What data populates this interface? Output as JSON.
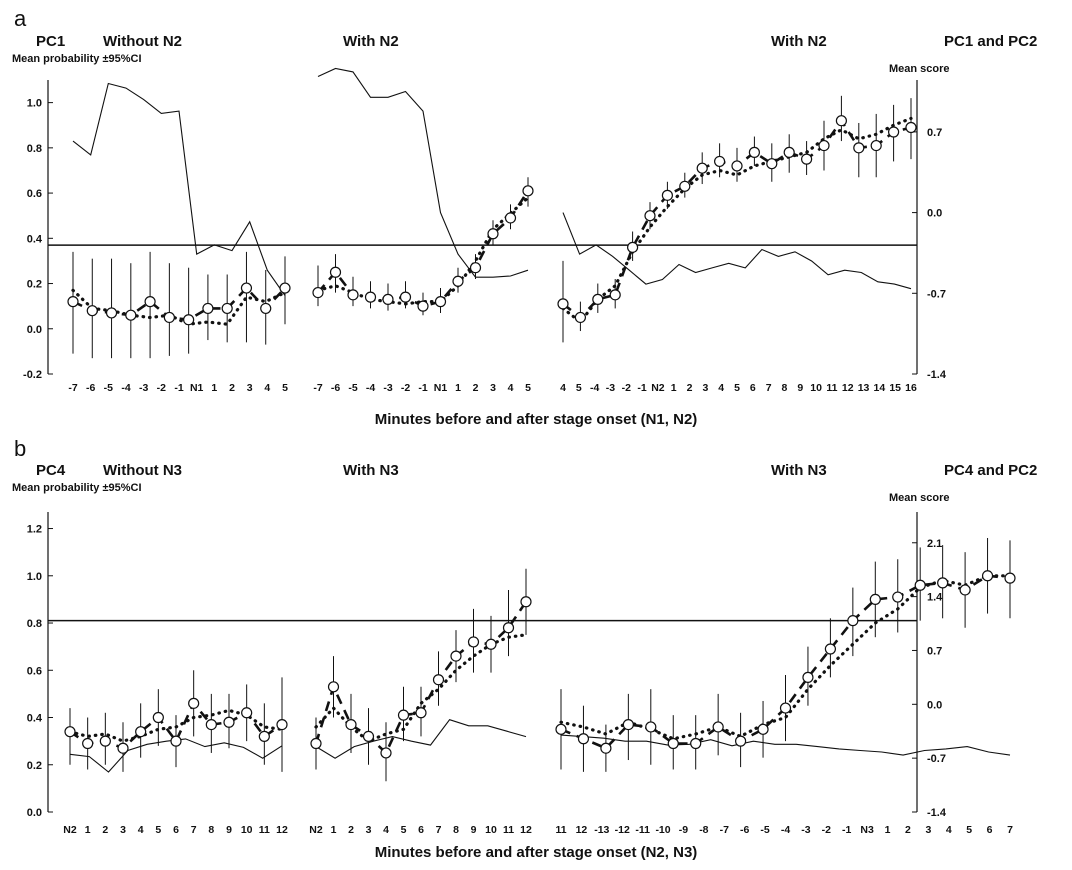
{
  "chart_data": [
    {
      "type": "line",
      "panel_letter": "a",
      "left_series_label": "PC1",
      "right_series_label": "PC1 and PC2",
      "section_titles": [
        "Without N2",
        "With N2",
        "With N2"
      ],
      "left_axis_label": "Mean probability ±95%CI",
      "right_axis_label": "Mean score",
      "xlabel": "Minutes before and after stage onset (N1, N2)",
      "left_ticks": [
        "1.0",
        "0.8",
        "0.6",
        "0.4",
        "0.2",
        "0.0",
        "-0.2"
      ],
      "left_tick_values": [
        1.0,
        0.8,
        0.6,
        0.4,
        0.2,
        0.0,
        -0.2
      ],
      "ylim_left": [
        -0.2,
        1.1
      ],
      "right_ticks": [
        "0.7",
        "0.0",
        "-0.7",
        "-1.4"
      ],
      "right_tick_values": [
        0.7,
        0.0,
        -0.7,
        -1.4
      ],
      "ylim_right": [
        -1.4,
        1.15
      ],
      "zero_reference_left": 0.37,
      "sections": [
        {
          "x_labels": [
            "-7",
            "-6",
            "-5",
            "-4",
            "-3",
            "-2",
            "-1",
            "N1",
            "1",
            "2",
            "3",
            "4",
            "5"
          ],
          "dash_series": [
            0.12,
            0.08,
            0.07,
            0.06,
            0.12,
            0.05,
            0.04,
            0.09,
            0.09,
            0.18,
            0.09,
            0.18,
            null
          ],
          "ci_low": [
            -0.11,
            -0.13,
            -0.13,
            -0.13,
            -0.13,
            -0.12,
            -0.11,
            -0.05,
            -0.06,
            -0.06,
            -0.07,
            0.02,
            null
          ],
          "ci_high": [
            0.34,
            0.31,
            0.31,
            0.29,
            0.34,
            0.29,
            0.27,
            0.24,
            0.24,
            0.34,
            0.26,
            0.32,
            null
          ],
          "dot_series": [
            0.17,
            0.09,
            0.08,
            0.06,
            0.05,
            0.06,
            0.02,
            0.03,
            0.02,
            0.14,
            0.12,
            0.16,
            null
          ],
          "thin_line_right": [
            0.62,
            0.5,
            1.12,
            1.08,
            0.98,
            0.86,
            0.88,
            -0.36,
            -0.28,
            -0.33,
            -0.08,
            -0.5,
            -0.72
          ]
        },
        {
          "x_labels": [
            "-7",
            "-6",
            "-5",
            "-4",
            "-3",
            "-2",
            "-1",
            "N1",
            "1",
            "2",
            "3",
            "4",
            "5"
          ],
          "x_positions": [
            -8,
            -7,
            -6,
            -5,
            -4,
            -3,
            -2,
            -1,
            0,
            1,
            2,
            3,
            4
          ],
          "dash_series": [
            0.16,
            0.25,
            0.15,
            0.14,
            0.13,
            0.14,
            0.1,
            0.12,
            0.21,
            0.27,
            0.42,
            0.49,
            0.61
          ],
          "ci_low": [
            0.1,
            0.16,
            0.1,
            0.09,
            0.08,
            0.09,
            0.06,
            0.07,
            0.16,
            0.22,
            0.37,
            0.44,
            0.54
          ],
          "ci_high": [
            0.28,
            0.33,
            0.23,
            0.21,
            0.2,
            0.21,
            0.16,
            0.18,
            0.27,
            0.33,
            0.48,
            0.55,
            0.67
          ],
          "dot_series": [
            0.17,
            0.19,
            0.16,
            0.13,
            0.12,
            0.11,
            0.12,
            0.12,
            0.19,
            0.3,
            0.44,
            0.51,
            0.58
          ],
          "thin_line_right": [
            1.18,
            1.25,
            1.22,
            1.0,
            1.0,
            1.05,
            0.88,
            0.0,
            -0.36,
            -0.56,
            -0.56,
            -0.55,
            -0.5
          ]
        },
        {
          "x_labels": [
            "4",
            "5",
            "-4",
            "-3",
            "-2",
            "-1",
            "N2",
            "1",
            "2",
            "3",
            "4",
            "5",
            "6",
            "7",
            "8",
            "9",
            "10",
            "11",
            "12",
            "13",
            "14",
            "15",
            "16"
          ],
          "x_positions": [
            -8.8,
            -7.8,
            -6.8,
            -5.8,
            -4.8,
            -3.8,
            -2.8,
            -1.8,
            -0.8,
            0.2,
            1.2,
            2.2,
            3.2,
            4.2,
            5.2,
            6.2,
            7.2,
            8.2,
            9.2,
            10.2,
            11.2,
            12.2,
            13.2,
            14.2,
            15.2,
            16.2,
            17.2,
            18.2
          ],
          "x_label_positions": [
            -8.8,
            -7.8,
            -4,
            -3,
            -2,
            -1,
            0,
            1,
            2,
            3,
            4,
            5,
            6,
            7,
            8,
            9,
            10,
            11,
            12,
            13,
            14,
            15,
            16
          ],
          "dash_series": [
            0.11,
            0.05,
            0.13,
            0.15,
            0.36,
            0.5,
            0.59,
            0.63,
            0.71,
            0.74,
            0.72,
            0.78,
            0.73,
            0.78,
            0.75,
            0.81,
            0.92,
            0.8,
            0.81,
            0.87,
            0.89
          ],
          "ci_low": [
            -0.06,
            -0.01,
            0.07,
            0.09,
            0.3,
            0.44,
            0.53,
            0.58,
            0.64,
            0.67,
            0.65,
            0.72,
            0.65,
            0.69,
            0.68,
            0.7,
            0.83,
            0.67,
            0.67,
            0.74,
            0.75
          ],
          "ci_high": [
            0.3,
            0.12,
            0.2,
            0.22,
            0.43,
            0.56,
            0.65,
            0.69,
            0.78,
            0.82,
            0.8,
            0.85,
            0.82,
            0.86,
            0.83,
            0.92,
            1.03,
            0.91,
            0.95,
            0.99,
            1.02
          ],
          "dot_series": [
            0.09,
            0.03,
            0.13,
            0.19,
            0.34,
            0.45,
            0.54,
            0.62,
            0.68,
            0.7,
            0.68,
            0.72,
            0.74,
            0.76,
            0.78,
            0.84,
            0.88,
            0.84,
            0.86,
            0.9,
            0.93
          ],
          "thin_line_right": [
            0.0,
            -0.36,
            -0.28,
            -0.38,
            -0.5,
            -0.62,
            -0.58,
            -0.45,
            -0.52,
            -0.48,
            -0.44,
            -0.48,
            -0.32,
            -0.38,
            -0.34,
            -0.42,
            -0.54,
            -0.5,
            -0.52,
            -0.6,
            -0.62,
            -0.66
          ]
        }
      ]
    },
    {
      "type": "line",
      "panel_letter": "b",
      "left_series_label": "PC4",
      "right_series_label": "PC4 and PC2",
      "section_titles": [
        "Without N3",
        "With N3",
        "With N3"
      ],
      "left_axis_label": "Mean probability ±95%CI",
      "right_axis_label": "Mean score",
      "xlabel": "Minutes before and after stage onset (N2, N3)",
      "left_ticks": [
        "1.2",
        "1.0",
        "0.8",
        "0.6",
        "0.4",
        "0.2",
        "0.0"
      ],
      "left_tick_values": [
        1.2,
        1.0,
        0.8,
        0.6,
        0.4,
        0.2,
        0.0
      ],
      "ylim_left": [
        0.0,
        1.27
      ],
      "right_ticks": [
        "2.1",
        "1.4",
        "0.7",
        "0.0",
        "-0.7",
        "-1.4"
      ],
      "right_tick_values": [
        2.1,
        1.4,
        0.7,
        0.0,
        -0.7,
        -1.4
      ],
      "ylim_right": [
        -1.4,
        2.5
      ],
      "zero_reference_left": 0.81,
      "sections": [
        {
          "x_labels": [
            "N2",
            "1",
            "2",
            "3",
            "4",
            "5",
            "6",
            "7",
            "8",
            "9",
            "10",
            "11",
            "12"
          ],
          "dash_series": [
            0.34,
            0.29,
            0.3,
            0.27,
            0.34,
            0.4,
            0.3,
            0.46,
            0.37,
            0.38,
            0.42,
            0.32,
            0.37
          ],
          "ci_low": [
            0.2,
            0.18,
            0.2,
            0.17,
            0.23,
            0.28,
            0.19,
            0.32,
            0.25,
            0.27,
            0.3,
            0.2,
            0.17
          ],
          "ci_high": [
            0.44,
            0.4,
            0.42,
            0.38,
            0.46,
            0.52,
            0.41,
            0.6,
            0.5,
            0.5,
            0.54,
            0.46,
            0.57
          ],
          "dot_series": [
            0.34,
            0.32,
            0.33,
            0.3,
            0.32,
            0.35,
            0.36,
            0.4,
            0.41,
            0.43,
            0.41,
            0.36,
            0.35
          ],
          "thin_line_right": [
            -0.65,
            -0.68,
            -0.88,
            -0.6,
            -0.52,
            -0.48,
            -0.45,
            -0.55,
            -0.5,
            -0.56,
            -0.7,
            -0.54
          ]
        },
        {
          "x_labels": [
            "N2",
            "1",
            "2",
            "3",
            "4",
            "5",
            "6",
            "7",
            "8",
            "9",
            "10",
            "11",
            "12"
          ],
          "x_positions": [
            -1,
            0,
            1,
            2,
            3,
            4,
            5,
            6,
            7,
            8,
            9,
            10
          ],
          "dash_series": [
            0.29,
            0.53,
            0.37,
            0.32,
            0.25,
            0.41,
            0.42,
            0.56,
            0.66,
            0.72,
            0.71,
            0.78,
            0.89
          ],
          "ci_low": [
            0.18,
            0.4,
            0.25,
            0.2,
            0.13,
            0.3,
            0.32,
            0.45,
            0.55,
            0.59,
            0.59,
            0.66,
            0.75
          ],
          "ci_high": [
            0.4,
            0.66,
            0.5,
            0.44,
            0.38,
            0.53,
            0.53,
            0.68,
            0.77,
            0.86,
            0.83,
            0.94,
            1.03
          ],
          "dot_series": [
            0.36,
            0.44,
            0.36,
            0.3,
            0.33,
            0.35,
            0.46,
            0.52,
            0.6,
            0.66,
            0.71,
            0.74,
            0.75
          ],
          "thin_line_right": [
            -0.55,
            -0.7,
            -0.55,
            -0.48,
            -0.42,
            -0.48,
            -0.53,
            -0.2,
            -0.28,
            -0.28,
            -0.35,
            -0.42
          ]
        },
        {
          "x_labels": [
            "11",
            "12",
            "-13",
            "-12",
            "-11",
            "-10",
            "-9",
            "-8",
            "-7",
            "-6",
            "-5",
            "-4",
            "-3",
            "-2",
            "-1",
            "N3",
            "1",
            "2",
            "3",
            "4",
            "5",
            "6",
            "7"
          ],
          "dash_series": [
            0.35,
            0.31,
            0.27,
            0.37,
            0.36,
            0.29,
            0.29,
            0.36,
            0.3,
            0.35,
            0.44,
            0.57,
            0.69,
            0.81,
            0.9,
            0.91,
            0.96,
            0.97,
            0.94,
            1.0,
            0.99
          ],
          "ci_low": [
            0.18,
            0.17,
            0.17,
            0.22,
            0.2,
            0.18,
            0.18,
            0.24,
            0.19,
            0.23,
            0.3,
            0.45,
            0.57,
            0.66,
            0.74,
            0.76,
            0.81,
            0.82,
            0.78,
            0.84,
            0.82
          ],
          "ci_high": [
            0.52,
            0.45,
            0.37,
            0.5,
            0.52,
            0.41,
            0.41,
            0.5,
            0.42,
            0.47,
            0.58,
            0.7,
            0.82,
            0.95,
            1.06,
            1.07,
            1.12,
            1.13,
            1.1,
            1.16,
            1.15
          ],
          "dot_series": [
            0.38,
            0.36,
            0.33,
            0.38,
            0.35,
            0.31,
            0.33,
            0.36,
            0.32,
            0.37,
            0.4,
            0.52,
            0.62,
            0.71,
            0.8,
            0.86,
            0.95,
            0.98,
            0.96,
            1.0,
            1.0
          ],
          "thin_line_right": [
            -0.4,
            -0.42,
            -0.44,
            -0.48,
            -0.48,
            -0.53,
            -0.52,
            -0.46,
            -0.54,
            -0.48,
            -0.52,
            -0.52,
            -0.55,
            -0.58,
            -0.6,
            -0.62,
            -0.66,
            -0.6,
            -0.58,
            -0.55,
            -0.62,
            -0.66
          ]
        }
      ]
    }
  ]
}
